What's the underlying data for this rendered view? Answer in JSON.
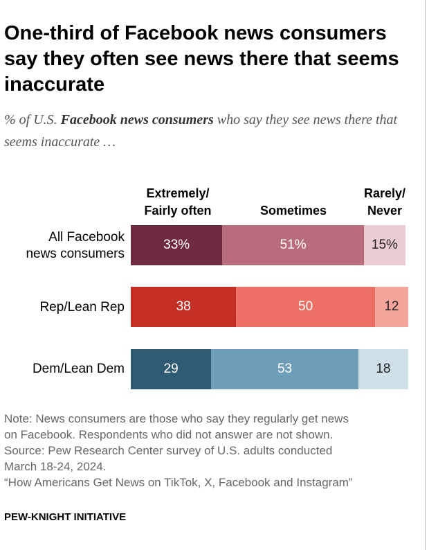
{
  "title": "One-third of Facebook news consumers say they often see news there that seems inaccurate",
  "subtitle": {
    "prefix": "% of U.S. ",
    "emphasis": "Facebook news consumers",
    "suffix": " who say they see news there that seems inaccurate …"
  },
  "column_headers": {
    "often_line1": "Extremely/",
    "often_line2": "Fairly often",
    "sometimes": "Sometimes",
    "rarely_line1": "Rarely/",
    "rarely_line2": "Never"
  },
  "chart_data": {
    "type": "bar",
    "orientation": "horizontal",
    "stacked": true,
    "title": "One-third of Facebook news consumers say they often see news there that seems inaccurate",
    "categories": [
      "All Facebook news consumers",
      "Rep/Lean Rep",
      "Dem/Lean Dem"
    ],
    "category_lines": [
      [
        "All Facebook",
        "news consumers"
      ],
      [
        "Rep/Lean Rep"
      ],
      [
        "Dem/Lean Dem"
      ]
    ],
    "series": [
      {
        "name": "Extremely/Fairly often",
        "values": [
          33,
          38,
          29
        ],
        "labels": [
          "33%",
          "38",
          "29"
        ]
      },
      {
        "name": "Sometimes",
        "values": [
          51,
          50,
          53
        ],
        "labels": [
          "51%",
          "50",
          "53"
        ]
      },
      {
        "name": "Rarely/Never",
        "values": [
          15,
          12,
          18
        ],
        "labels": [
          "15%",
          "12",
          "18"
        ]
      }
    ],
    "unit": "%",
    "colors": {
      "all": [
        "#6e2b3f",
        "#b96c7b",
        "#ecccd3"
      ],
      "rep": [
        "#c42f25",
        "#ec7064",
        "#f5a49b"
      ],
      "dem": [
        "#2e5a73",
        "#6f9eb8",
        "#cfdfe8"
      ]
    },
    "text_colors": [
      "#ffffff",
      "#ffffff",
      "#222222"
    ]
  },
  "note": {
    "line1": "Note: News consumers are those who say they regularly get news",
    "line2": "on Facebook. Respondents who did not answer are not shown.",
    "line3": "Source: Pew Research Center survey of U.S. adults conducted",
    "line4": "March 18-24, 2024.",
    "line5": "“How Americans Get News on TikTok, X, Facebook and Instagram”"
  },
  "brand": "PEW-KNIGHT INITIATIVE"
}
